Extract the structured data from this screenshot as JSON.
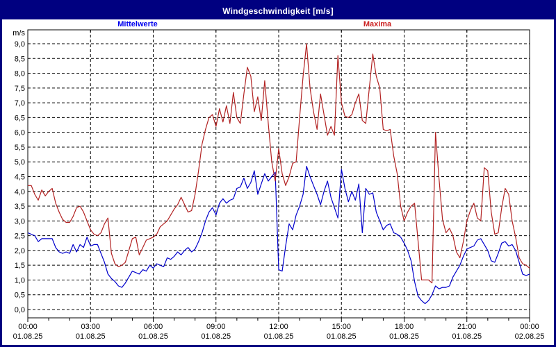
{
  "window": {
    "title": "Windgeschwindigkeit [m/s]"
  },
  "legend": {
    "mean_label": "Mittelwerte",
    "mean_color": "#0000ee",
    "max_label": "Maxima",
    "max_color": "#cc2222"
  },
  "colors": {
    "title_bar_bg": "#000080",
    "frame_border": "#000080",
    "plot_border": "#000000",
    "grid": "#000000",
    "background": "#ffffff",
    "mean_line": "#0000cc",
    "max_line": "#b22222"
  },
  "chart_data": {
    "type": "line",
    "title": "Windgeschwindigkeit [m/s]",
    "ylabel": "m/s",
    "ylim": [
      0.0,
      9.0
    ],
    "ytick_step": 0.5,
    "ytick_labels": [
      "0,0",
      "0,5",
      "1,0",
      "1,5",
      "2,0",
      "2,5",
      "3,0",
      "3,5",
      "4,0",
      "4,5",
      "5,0",
      "5,5",
      "6,0",
      "6,5",
      "7,0",
      "7,5",
      "8,0",
      "8,5",
      "9,0"
    ],
    "x_hours_range": [
      0,
      24
    ],
    "major_tick_hours": 3,
    "minor_tick_hours": 1,
    "grid": "dashed",
    "xticks": [
      {
        "time": "00:00",
        "date": "01.08.25"
      },
      {
        "time": "03:00",
        "date": "01.08.25"
      },
      {
        "time": "06:00",
        "date": "01.08.25"
      },
      {
        "time": "09:00",
        "date": "01.08.25"
      },
      {
        "time": "12:00",
        "date": "01.08.25"
      },
      {
        "time": "15:00",
        "date": "01.08.25"
      },
      {
        "time": "18:00",
        "date": "01.08.25"
      },
      {
        "time": "21:00",
        "date": "01.08.25"
      },
      {
        "time": "00:00",
        "date": "02.08.25"
      }
    ],
    "series": [
      {
        "name": "Mittelwerte",
        "color": "#0000cc",
        "interval_minutes": 10,
        "values": [
          2.6,
          2.55,
          2.5,
          2.3,
          2.4,
          2.4,
          2.4,
          2.4,
          2.1,
          1.95,
          1.9,
          1.95,
          1.9,
          2.2,
          1.95,
          2.2,
          2.1,
          2.45,
          2.15,
          2.2,
          2.2,
          1.9,
          1.6,
          1.2,
          1.05,
          0.95,
          0.8,
          0.75,
          0.9,
          1.1,
          1.3,
          1.25,
          1.2,
          1.35,
          1.3,
          1.5,
          1.4,
          1.55,
          1.5,
          1.45,
          1.75,
          1.7,
          1.8,
          1.95,
          1.85,
          2.0,
          2.1,
          1.95,
          2.05,
          2.3,
          2.6,
          3.0,
          3.3,
          3.45,
          3.2,
          3.6,
          3.75,
          3.6,
          3.7,
          3.75,
          4.1,
          4.15,
          4.45,
          4.1,
          4.3,
          4.7,
          3.9,
          4.25,
          4.6,
          4.35,
          4.5,
          4.65,
          1.35,
          1.3,
          2.15,
          2.9,
          2.7,
          3.2,
          3.5,
          3.9,
          4.85,
          4.5,
          4.2,
          3.9,
          3.55,
          4.0,
          4.35,
          3.8,
          3.45,
          3.1,
          4.75,
          4.1,
          3.65,
          4.0,
          3.7,
          4.25,
          2.6,
          4.1,
          3.9,
          3.95,
          3.3,
          3.0,
          2.7,
          2.85,
          2.9,
          2.6,
          2.55,
          2.45,
          2.25,
          2.0,
          1.65,
          0.95,
          0.45,
          0.3,
          0.2,
          0.3,
          0.5,
          0.8,
          0.7,
          0.75,
          0.75,
          0.8,
          1.1,
          1.3,
          1.5,
          1.8,
          2.05,
          2.1,
          2.15,
          2.35,
          2.4,
          2.2,
          2.0,
          1.65,
          1.6,
          1.9,
          2.25,
          2.3,
          2.15,
          2.2,
          2.0,
          1.6,
          1.2,
          1.15,
          1.2
        ]
      },
      {
        "name": "Maxima",
        "color": "#b22222",
        "interval_minutes": 10,
        "values": [
          4.2,
          4.2,
          3.9,
          3.7,
          4.05,
          3.85,
          4.0,
          4.1,
          3.6,
          3.3,
          3.05,
          2.95,
          2.95,
          3.15,
          3.45,
          3.5,
          3.3,
          3.0,
          2.7,
          2.55,
          2.5,
          2.6,
          2.9,
          3.1,
          1.9,
          1.55,
          1.45,
          1.5,
          1.6,
          2.0,
          2.4,
          2.45,
          1.85,
          2.1,
          2.35,
          2.4,
          2.45,
          2.55,
          2.8,
          2.9,
          3.0,
          3.2,
          3.4,
          3.55,
          3.8,
          3.55,
          3.3,
          3.35,
          3.9,
          4.7,
          5.6,
          6.1,
          6.5,
          6.6,
          6.2,
          6.8,
          6.35,
          6.9,
          6.3,
          7.35,
          6.5,
          6.3,
          7.3,
          8.2,
          7.9,
          6.7,
          7.2,
          6.4,
          7.75,
          6.3,
          5.0,
          4.35,
          5.45,
          4.6,
          4.2,
          4.5,
          4.95,
          5.0,
          6.5,
          7.9,
          9.0,
          7.5,
          6.7,
          6.1,
          7.3,
          6.6,
          5.9,
          6.2,
          5.9,
          8.6,
          7.0,
          6.55,
          6.5,
          6.6,
          7.0,
          7.3,
          6.4,
          6.3,
          7.5,
          8.65,
          7.9,
          7.5,
          6.1,
          6.05,
          6.1,
          5.2,
          4.6,
          3.5,
          3.0,
          3.3,
          3.5,
          3.6,
          2.3,
          1.0,
          1.0,
          1.0,
          0.9,
          6.0,
          4.45,
          3.05,
          2.6,
          2.75,
          2.5,
          1.95,
          1.75,
          2.3,
          3.0,
          3.35,
          3.6,
          3.1,
          3.0,
          4.8,
          4.7,
          3.3,
          2.55,
          2.6,
          3.45,
          4.1,
          3.9,
          3.0,
          2.45,
          1.75,
          1.55,
          1.5,
          1.4
        ]
      }
    ]
  }
}
